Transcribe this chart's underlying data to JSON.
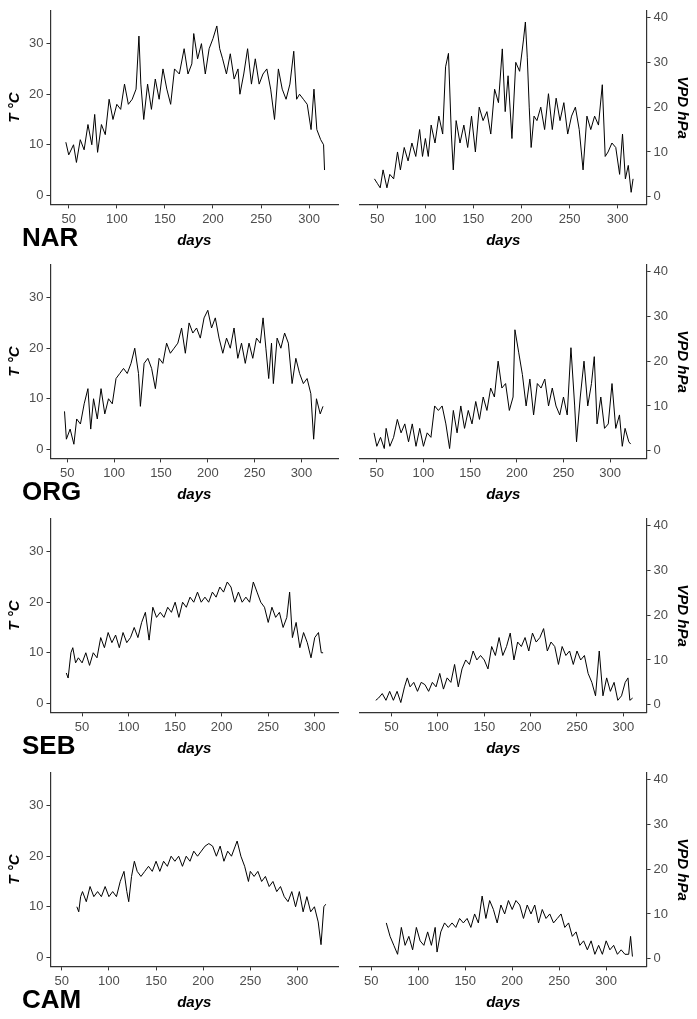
{
  "chart_data": [
    {
      "type": "line",
      "xlabel": "days",
      "ylabel": "T °C",
      "annotations": [
        "NAR"
      ],
      "xlim": [
        31,
        330
      ],
      "xticks": [
        50,
        100,
        150,
        200,
        250,
        300
      ],
      "ylim": [
        -1.8,
        36.5
      ],
      "yticks": [
        0,
        10,
        20,
        30
      ],
      "series": [
        {
          "color": "#000000",
          "x": [
            47,
            50,
            55,
            58,
            62,
            66,
            70,
            74,
            77,
            80,
            84,
            88,
            92,
            96,
            100,
            104,
            108,
            112,
            116,
            120,
            123,
            125,
            128,
            132,
            136,
            140,
            144,
            148,
            152,
            156,
            160,
            165,
            170,
            174,
            178,
            180,
            184,
            188,
            192,
            196,
            200,
            204,
            207,
            210,
            214,
            218,
            222,
            226,
            228,
            232,
            236,
            240,
            244,
            248,
            252,
            256,
            260,
            264,
            268,
            272,
            276,
            280,
            284,
            287,
            290,
            294,
            298,
            302,
            305,
            308,
            312,
            315,
            316
          ],
          "values": [
            10.5,
            8,
            10,
            6.5,
            11,
            9,
            14,
            10,
            16,
            8.5,
            14,
            12,
            19,
            15,
            18,
            17,
            22,
            18,
            19,
            21,
            31.5,
            22,
            15,
            22,
            17,
            23,
            19,
            25,
            21,
            18,
            25,
            24,
            29,
            24,
            26,
            32,
            27,
            30,
            24,
            29,
            31,
            33.5,
            29,
            27,
            24,
            28,
            23,
            25,
            20,
            24,
            29,
            22,
            27,
            22,
            24,
            25,
            21,
            15,
            25,
            21,
            19,
            22,
            28.5,
            19,
            20,
            19,
            18,
            13,
            21,
            13,
            11,
            10,
            5
          ]
        }
      ]
    },
    {
      "type": "line",
      "xlabel": "days",
      "y2label": "VPD hPa",
      "xlim": [
        32,
        330
      ],
      "xticks": [
        50,
        100,
        150,
        200,
        250,
        300
      ],
      "y2lim": [
        -1.7,
        41.5
      ],
      "y2ticks": [
        0,
        10,
        20,
        30,
        40
      ],
      "series": [
        {
          "color": "#000000",
          "axis": "y2",
          "x": [
            47,
            50,
            53,
            56,
            60,
            63,
            67,
            71,
            74,
            78,
            82,
            86,
            90,
            94,
            97,
            100,
            103,
            106,
            110,
            114,
            118,
            121,
            124,
            127,
            129,
            132,
            136,
            140,
            144,
            148,
            152,
            156,
            160,
            164,
            168,
            172,
            176,
            180,
            183,
            186,
            190,
            194,
            198,
            202,
            204,
            206,
            208,
            210,
            213,
            216,
            220,
            224,
            228,
            232,
            236,
            240,
            244,
            248,
            252,
            256,
            260,
            264,
            268,
            272,
            276,
            280,
            284,
            287,
            290,
            294,
            298,
            302,
            305,
            308,
            311,
            314,
            316
          ],
          "values": [
            4,
            3,
            2,
            6,
            2,
            5,
            4,
            10,
            6,
            11,
            8,
            12,
            9,
            15,
            9,
            13,
            9,
            16,
            12,
            18,
            14,
            29,
            32,
            14,
            6,
            17,
            12,
            16,
            11,
            18,
            10,
            20,
            17,
            19,
            14,
            24,
            21,
            33,
            19,
            27,
            13,
            30,
            28,
            35,
            39,
            31,
            20,
            11,
            18,
            17,
            20,
            15,
            23,
            15,
            22,
            17,
            21,
            14,
            18,
            20,
            15,
            6,
            18,
            15,
            18,
            16,
            25,
            9,
            10,
            12,
            11,
            5,
            14,
            4,
            7,
            1,
            4
          ]
        }
      ]
    },
    {
      "type": "line",
      "xlabel": "days",
      "ylabel": "T °C",
      "annotations": [
        "ORG"
      ],
      "xlim": [
        32,
        339
      ],
      "xticks": [
        50,
        100,
        150,
        200,
        250,
        300
      ],
      "ylim": [
        -1.8,
        36.5
      ],
      "yticks": [
        0,
        10,
        20,
        30
      ],
      "series": [
        {
          "color": "#000000",
          "x": [
            47,
            49,
            53,
            57,
            60,
            64,
            68,
            72,
            75,
            78,
            82,
            86,
            90,
            94,
            98,
            102,
            106,
            110,
            114,
            118,
            122,
            126,
            128,
            132,
            136,
            140,
            144,
            148,
            152,
            156,
            160,
            164,
            168,
            172,
            176,
            180,
            184,
            188,
            192,
            196,
            200,
            204,
            208,
            212,
            216,
            220,
            224,
            228,
            232,
            236,
            240,
            244,
            248,
            252,
            256,
            259,
            262,
            265,
            268,
            270,
            274,
            278,
            282,
            286,
            290,
            294,
            298,
            302,
            306,
            310,
            313,
            316,
            320,
            323
          ],
          "values": [
            7.5,
            2,
            4,
            1,
            6,
            5,
            9,
            12,
            4,
            10,
            6,
            12,
            7,
            10,
            9,
            14,
            15,
            16,
            15,
            17,
            20,
            15,
            8.5,
            17,
            18,
            16,
            12,
            18,
            17,
            21,
            19,
            20,
            21,
            24,
            19,
            25,
            23,
            24,
            22,
            26,
            27.5,
            24,
            26,
            22,
            19,
            22,
            20,
            24,
            18,
            21,
            17,
            21,
            18,
            22,
            21,
            26,
            20,
            14,
            21,
            13,
            22,
            20,
            23,
            21,
            13,
            18,
            15,
            13,
            14,
            11,
            2,
            10,
            7,
            8.5
          ]
        }
      ]
    },
    {
      "type": "line",
      "xlabel": "days",
      "y2label": "VPD hPa",
      "xlim": [
        32,
        339
      ],
      "xticks": [
        50,
        100,
        150,
        200,
        250,
        300
      ],
      "y2lim": [
        -1.7,
        41.5
      ],
      "y2ticks": [
        0,
        10,
        20,
        30,
        40
      ],
      "series": [
        {
          "color": "#000000",
          "axis": "y2",
          "x": [
            47,
            50,
            54,
            58,
            60,
            64,
            68,
            72,
            76,
            80,
            84,
            88,
            92,
            96,
            100,
            104,
            108,
            112,
            116,
            120,
            124,
            128,
            132,
            136,
            140,
            144,
            148,
            152,
            156,
            160,
            164,
            168,
            172,
            176,
            180,
            184,
            188,
            192,
            196,
            198,
            202,
            206,
            210,
            214,
            218,
            222,
            226,
            230,
            234,
            238,
            242,
            246,
            250,
            254,
            258,
            262,
            264,
            268,
            272,
            276,
            280,
            283,
            286,
            290,
            294,
            298,
            302,
            306,
            310,
            313,
            316,
            320,
            322
          ],
          "values": [
            4,
            1,
            3,
            0.5,
            5,
            1,
            3,
            7,
            4,
            6,
            2,
            6,
            1,
            5,
            1,
            4,
            3,
            10,
            9,
            10,
            6,
            0.5,
            9,
            4,
            10,
            5,
            9,
            6,
            11,
            7,
            12,
            9,
            14,
            12,
            20,
            14,
            15,
            9,
            12,
            27,
            22,
            17,
            10,
            16,
            8,
            15,
            14,
            16,
            10,
            14,
            10,
            8,
            12,
            8,
            23,
            10,
            2,
            12,
            20,
            10,
            15,
            21,
            6,
            12,
            5,
            6,
            15,
            5,
            8,
            1,
            5,
            2,
            1.5
          ]
        }
      ]
    },
    {
      "type": "line",
      "xlabel": "days",
      "ylabel": "T °C",
      "annotations": [
        "SEB"
      ],
      "xlim": [
        16,
        325
      ],
      "xticks": [
        50,
        100,
        150,
        200,
        250,
        300
      ],
      "ylim": [
        -1.8,
        36.5
      ],
      "yticks": [
        0,
        10,
        20,
        30
      ],
      "series": [
        {
          "color": "#000000",
          "x": [
            33,
            35,
            38,
            40,
            43,
            46,
            50,
            54,
            58,
            62,
            66,
            70,
            74,
            78,
            82,
            86,
            90,
            94,
            98,
            102,
            106,
            110,
            114,
            118,
            122,
            126,
            130,
            134,
            138,
            142,
            146,
            150,
            154,
            158,
            162,
            166,
            170,
            174,
            178,
            182,
            186,
            190,
            194,
            198,
            202,
            206,
            210,
            214,
            218,
            222,
            226,
            230,
            234,
            238,
            242,
            246,
            250,
            254,
            258,
            262,
            266,
            270,
            273,
            276,
            280,
            284,
            288,
            292,
            296,
            300,
            304,
            307,
            309
          ],
          "values": [
            6,
            5,
            10,
            11,
            8,
            9,
            8,
            10,
            7.5,
            10,
            9,
            13,
            11,
            14,
            12,
            13.5,
            11,
            14,
            12,
            13,
            15,
            13,
            16,
            18,
            12.5,
            19,
            17,
            18,
            17,
            19,
            18,
            20,
            17,
            20,
            19,
            21,
            20,
            22,
            20,
            21,
            20,
            22,
            21,
            23,
            22,
            24,
            23,
            20,
            22,
            20,
            21,
            20,
            24,
            22,
            20,
            19,
            16,
            19,
            17,
            18,
            15,
            17,
            22,
            13,
            16,
            11,
            14,
            12,
            9,
            13,
            14,
            10,
            10
          ]
        }
      ]
    },
    {
      "type": "line",
      "xlabel": "days",
      "y2label": "VPD hPa",
      "xlim": [
        16,
        325
      ],
      "xticks": [
        50,
        100,
        150,
        200,
        250,
        300
      ],
      "y2lim": [
        -1.7,
        41.5
      ],
      "y2ticks": [
        0,
        10,
        20,
        30,
        40
      ],
      "series": [
        {
          "color": "#000000",
          "axis": "y2",
          "x": [
            33,
            36,
            40,
            44,
            48,
            52,
            56,
            60,
            64,
            67,
            70,
            74,
            78,
            82,
            86,
            90,
            94,
            98,
            102,
            106,
            110,
            114,
            118,
            122,
            126,
            130,
            134,
            138,
            142,
            146,
            150,
            154,
            158,
            162,
            166,
            170,
            174,
            178,
            182,
            186,
            190,
            194,
            198,
            202,
            206,
            210,
            214,
            218,
            222,
            226,
            230,
            234,
            238,
            242,
            246,
            250,
            254,
            258,
            262,
            266,
            270,
            274,
            278,
            282,
            286,
            290,
            294,
            298,
            302,
            305,
            307,
            310
          ],
          "values": [
            1,
            1.5,
            2.5,
            1,
            3,
            1,
            3,
            0.5,
            4,
            6,
            4,
            5,
            3,
            5,
            4.5,
            3,
            5,
            4,
            7,
            3.5,
            6,
            5,
            9,
            4,
            8,
            10,
            9,
            12,
            10,
            11,
            10,
            8,
            13,
            11,
            15,
            11,
            13,
            16,
            10,
            14,
            13,
            15,
            12,
            16,
            14,
            15,
            17,
            12,
            14,
            13,
            9,
            13,
            11,
            12,
            9,
            12,
            10,
            11,
            7,
            5,
            2,
            12,
            2,
            6,
            3,
            5,
            1,
            2,
            5,
            6,
            1,
            1.5
          ]
        }
      ]
    },
    {
      "type": "line",
      "xlabel": "days",
      "ylabel": "T °C",
      "annotations": [
        "CAM"
      ],
      "xlim": [
        38,
        343
      ],
      "xticks": [
        50,
        100,
        150,
        200,
        250,
        300
      ],
      "ylim": [
        -1.8,
        36.5
      ],
      "yticks": [
        0,
        10,
        20,
        30
      ],
      "series": [
        {
          "color": "#000000",
          "x": [
            66,
            68,
            70,
            72,
            76,
            80,
            84,
            88,
            92,
            96,
            100,
            104,
            108,
            112,
            116,
            119,
            121,
            124,
            127,
            130,
            134,
            138,
            142,
            146,
            150,
            154,
            158,
            162,
            166,
            170,
            174,
            178,
            182,
            186,
            190,
            194,
            198,
            202,
            206,
            210,
            214,
            218,
            222,
            226,
            230,
            234,
            236,
            240,
            244,
            248,
            250,
            254,
            258,
            262,
            266,
            270,
            274,
            278,
            282,
            286,
            290,
            294,
            298,
            302,
            306,
            310,
            314,
            318,
            322,
            325,
            328,
            330
          ],
          "values": [
            10,
            9,
            12,
            13,
            11,
            14,
            12,
            13,
            12,
            14,
            12,
            13,
            12,
            15,
            17,
            13,
            11,
            16,
            19,
            17,
            16,
            17,
            18,
            17,
            19,
            17,
            19,
            18,
            20,
            19,
            20,
            18,
            20,
            19,
            21,
            20,
            21,
            22,
            22.5,
            22,
            20,
            22,
            19,
            21,
            20,
            22,
            23,
            20,
            18,
            15,
            17,
            16,
            17,
            15,
            16,
            14,
            15,
            13,
            14,
            12,
            11,
            13,
            10,
            13,
            9,
            12,
            9,
            10,
            7,
            2.5,
            10,
            10.5
          ]
        }
      ]
    },
    {
      "type": "line",
      "xlabel": "days",
      "y2label": "VPD hPa",
      "xlim": [
        38,
        343
      ],
      "xticks": [
        50,
        100,
        150,
        200,
        250,
        300
      ],
      "y2lim": [
        -1.7,
        41.5
      ],
      "y2ticks": [
        0,
        10,
        20,
        30,
        40
      ],
      "series": [
        {
          "color": "#000000",
          "axis": "y2",
          "x": [
            66,
            70,
            74,
            78,
            82,
            86,
            90,
            94,
            98,
            102,
            106,
            110,
            114,
            118,
            120,
            124,
            128,
            132,
            136,
            140,
            144,
            148,
            152,
            156,
            160,
            164,
            168,
            172,
            176,
            180,
            184,
            188,
            192,
            196,
            200,
            204,
            208,
            212,
            216,
            220,
            224,
            228,
            232,
            236,
            240,
            244,
            248,
            252,
            256,
            260,
            264,
            268,
            272,
            276,
            280,
            284,
            288,
            292,
            296,
            300,
            304,
            308,
            312,
            316,
            320,
            324,
            326,
            328
          ],
          "values": [
            8,
            5,
            3,
            1,
            7,
            3,
            5,
            2,
            7,
            4,
            3,
            6,
            3,
            7,
            1.5,
            6,
            8,
            7,
            8,
            7,
            9,
            8,
            9,
            7,
            10,
            8,
            14,
            9,
            13,
            11,
            8,
            12,
            10,
            13,
            11,
            13,
            12,
            9,
            12,
            10,
            12,
            8,
            11,
            9,
            10,
            8,
            9,
            10,
            7,
            8,
            5,
            6,
            3,
            4,
            2,
            4,
            1,
            3,
            1,
            4,
            2,
            3,
            1,
            2,
            1,
            1,
            5,
            0.5
          ]
        }
      ]
    }
  ]
}
